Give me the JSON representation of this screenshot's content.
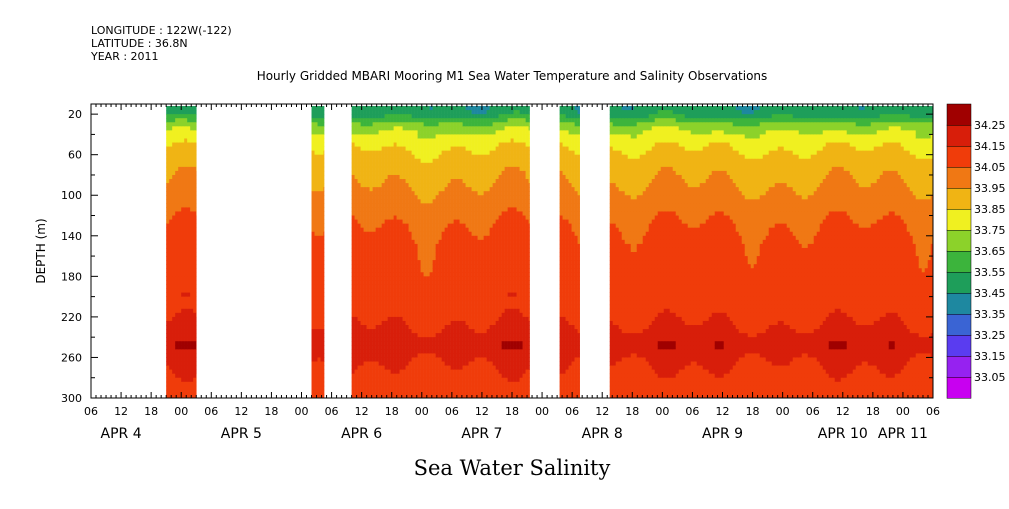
{
  "header": {
    "lines": [
      "LONGITUDE : 122W(-122)",
      "LATITUDE : 36.8N",
      "YEAR : 2011"
    ],
    "title": "Hourly Gridded MBARI Mooring M1 Sea Water Temperature and Salinity Observations"
  },
  "chart_data": {
    "type": "heatmap",
    "title": "Hourly Gridded MBARI Mooring M1 Sea Water Temperature and Salinity Observations",
    "xlabel": "",
    "ylabel": "DEPTH (m)",
    "caption": "Sea Water Salinity",
    "x_start": "2011-04-04 06:00",
    "x_end": "2011-04-11 06:00",
    "hour_ticks": [
      "06",
      "12",
      "18",
      "00",
      "06",
      "12",
      "18",
      "00",
      "06",
      "12",
      "18",
      "00",
      "06",
      "12",
      "18",
      "00",
      "06",
      "12",
      "18",
      "00",
      "06",
      "12",
      "18",
      "00",
      "06",
      "12",
      "18",
      "00",
      "06"
    ],
    "day_labels": [
      {
        "label": "APR  4",
        "at": "2011-04-04 12:00"
      },
      {
        "label": "APR  5",
        "at": "2011-04-05 12:00"
      },
      {
        "label": "APR  6",
        "at": "2011-04-06 12:00"
      },
      {
        "label": "APR  7",
        "at": "2011-04-07 12:00"
      },
      {
        "label": "APR  8",
        "at": "2011-04-08 12:00"
      },
      {
        "label": "APR  9",
        "at": "2011-04-09 12:00"
      },
      {
        "label": "APR 10",
        "at": "2011-04-10 12:00"
      },
      {
        "label": "APR 11",
        "at": "2011-04-11 00:00"
      }
    ],
    "y_ticks": [
      20,
      60,
      100,
      140,
      180,
      220,
      260,
      300
    ],
    "ylim": [
      10,
      300
    ],
    "y_reversed": true,
    "data_segments": [
      {
        "start": "2011-04-04 21:00",
        "end": "2011-04-05 03:00"
      },
      {
        "start": "2011-04-06 02:00",
        "end": "2011-04-06 04:30"
      },
      {
        "start": "2011-04-06 10:00",
        "end": "2011-04-07 21:30"
      },
      {
        "start": "2011-04-08 03:30",
        "end": "2011-04-08 07:30"
      },
      {
        "start": "2011-04-08 13:30",
        "end": "2011-04-11 06:00"
      }
    ],
    "profile": [
      {
        "depth": 20,
        "salinity": 33.55
      },
      {
        "depth": 30,
        "salinity": 33.72
      },
      {
        "depth": 40,
        "salinity": 33.82
      },
      {
        "depth": 50,
        "salinity": 33.88
      },
      {
        "depth": 60,
        "salinity": 33.92
      },
      {
        "depth": 75,
        "salinity": 33.97
      },
      {
        "depth": 90,
        "salinity": 34.0
      },
      {
        "depth": 110,
        "salinity": 34.05
      },
      {
        "depth": 130,
        "salinity": 34.1
      },
      {
        "depth": 150,
        "salinity": 34.13
      },
      {
        "depth": 175,
        "salinity": 34.14
      },
      {
        "depth": 200,
        "salinity": 34.16
      },
      {
        "depth": 220,
        "salinity": 34.19
      },
      {
        "depth": 235,
        "salinity": 34.21
      },
      {
        "depth": 248,
        "salinity": 34.24
      },
      {
        "depth": 260,
        "salinity": 34.21
      },
      {
        "depth": 275,
        "salinity": 34.19
      },
      {
        "depth": 290,
        "salinity": 34.17
      },
      {
        "depth": 300,
        "salinity": 34.16
      }
    ],
    "colorbar": {
      "labels": [
        "33.05",
        "33.15",
        "33.25",
        "33.35",
        "33.45",
        "33.55",
        "33.65",
        "33.75",
        "33.85",
        "33.95",
        "34.05",
        "34.15",
        "34.25"
      ],
      "bands": [
        {
          "from": 33.0,
          "to": 33.1,
          "color": "#c800f0"
        },
        {
          "from": 33.1,
          "to": 33.2,
          "color": "#9622f0"
        },
        {
          "from": 33.2,
          "to": 33.3,
          "color": "#5a3cf0"
        },
        {
          "from": 33.3,
          "to": 33.4,
          "color": "#3a64d4"
        },
        {
          "from": 33.4,
          "to": 33.5,
          "color": "#1e88a0"
        },
        {
          "from": 33.5,
          "to": 33.6,
          "color": "#1e9e5a"
        },
        {
          "from": 33.6,
          "to": 33.7,
          "color": "#3cb43c"
        },
        {
          "from": 33.7,
          "to": 33.8,
          "color": "#8cd22a"
        },
        {
          "from": 33.8,
          "to": 33.9,
          "color": "#f0f020"
        },
        {
          "from": 33.9,
          "to": 34.0,
          "color": "#f0b414"
        },
        {
          "from": 34.0,
          "to": 34.1,
          "color": "#f07814"
        },
        {
          "from": 34.1,
          "to": 34.2,
          "color": "#f03c0a"
        },
        {
          "from": 34.2,
          "to": 34.25,
          "color": "#d81e0a"
        },
        {
          "from": 34.25,
          "to": 34.3,
          "color": "#a00000"
        }
      ]
    }
  }
}
